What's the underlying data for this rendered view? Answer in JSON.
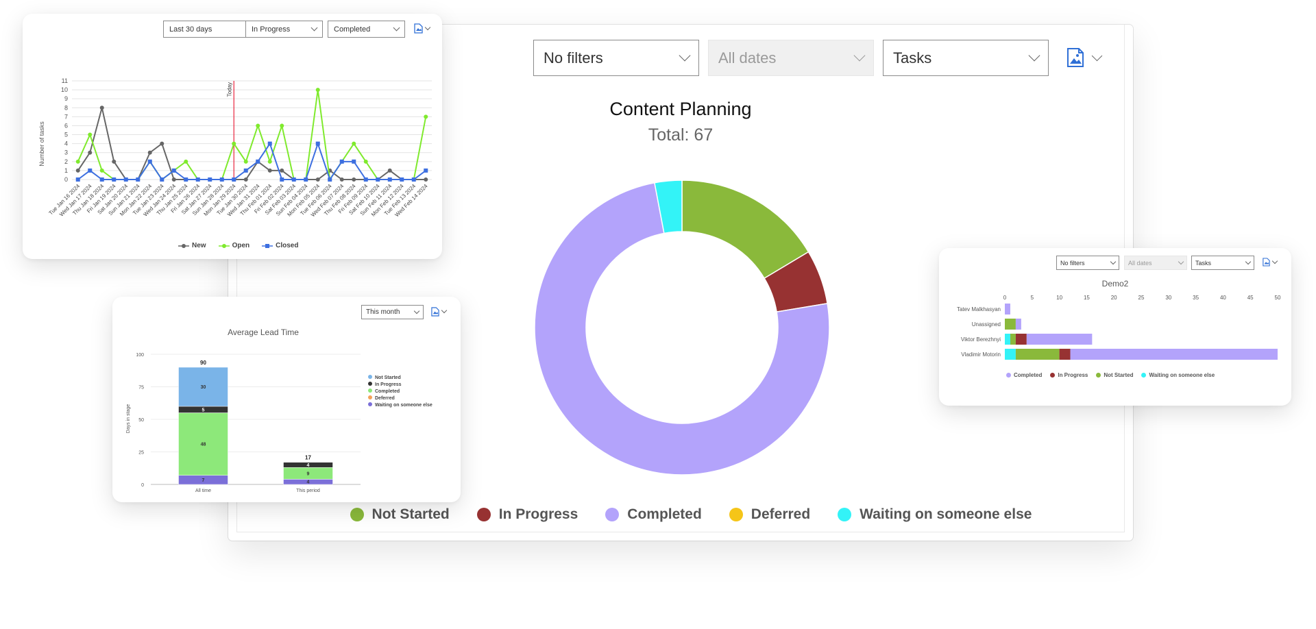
{
  "main": {
    "filters": {
      "f1": "No filters",
      "f2": "All dates",
      "f3": "Tasks"
    },
    "export_icon": "image-export-icon",
    "title": "Content Planning",
    "total": "Total: 67",
    "legend": [
      "Not Started",
      "In Progress",
      "Completed",
      "Deferred",
      "Waiting on someone else"
    ]
  },
  "tasks_card": {
    "filters": {
      "f1": "Last 30 days",
      "f2": "In Progress",
      "f3": "Completed"
    },
    "export_icon": "file-export-icon",
    "today_label": "Today",
    "legend": [
      "New",
      "Open",
      "Closed"
    ]
  },
  "lead_card": {
    "title": "Average Lead Time",
    "filter": "This month",
    "export_icon": "file-export-icon",
    "legend": [
      "Not Started",
      "In Progress",
      "Completed",
      "Deferred",
      "Waiting on someone else"
    ]
  },
  "demo_card": {
    "filters": {
      "f1": "No filters",
      "f2": "All dates",
      "f3": "Tasks"
    },
    "export_icon": "file-export-icon",
    "title": "Demo2",
    "legend": [
      "Completed",
      "In Progress",
      "Not Started",
      "Waiting on someone else"
    ]
  },
  "colors": {
    "not_started": "#8ab93b",
    "in_progress": "#973232",
    "completed": "#b3a3fb",
    "deferred": "#f5c518",
    "waiting": "#33f3f7",
    "new": "#666666",
    "open": "#7fea2d",
    "closed": "#3d6fe0",
    "today_line": "#e8263e"
  },
  "chart_data": [
    {
      "type": "pie",
      "title": "Content Planning",
      "subtitle": "Total: 67",
      "donut": true,
      "slices": [
        {
          "name": "Not Started",
          "value": 11,
          "color": "#8ab93b"
        },
        {
          "name": "In Progress",
          "value": 4,
          "color": "#973232"
        },
        {
          "name": "Completed",
          "value": 50,
          "color": "#b3a3fb"
        },
        {
          "name": "Deferred",
          "value": 0,
          "color": "#f5c518"
        },
        {
          "name": "Waiting on someone else",
          "value": 2,
          "color": "#33f3f7"
        }
      ],
      "legend": "bottom"
    },
    {
      "type": "line",
      "ylabel": "Number of tasks",
      "ylim": [
        0,
        11
      ],
      "yticks": [
        0,
        1,
        2,
        3,
        4,
        5,
        6,
        7,
        8,
        9,
        10,
        11
      ],
      "grid": true,
      "today_index": 13,
      "categories": [
        "Tue Jan 16 2024",
        "Wed Jan 17 2024",
        "Thu Jan 18 2024",
        "Fri Jan 19 2024",
        "Sat Jan 20 2024",
        "Sun Jan 21 2024",
        "Mon Jan 22 2024",
        "Tue Jan 23 2024",
        "Wed Jan 24 2024",
        "Thu Jan 25 2024",
        "Fri Jan 26 2024",
        "Sat Jan 27 2024",
        "Sun Jan 28 2024",
        "Mon Jan 29 2024",
        "Tue Jan 30 2024",
        "Wed Jan 31 2024",
        "Thu Feb 01 2024",
        "Fri Feb 02 2024",
        "Sat Feb 03 2024",
        "Sun Feb 04 2024",
        "Mon Feb 05 2024",
        "Tue Feb 06 2024",
        "Wed Feb 07 2024",
        "Thu Feb 08 2024",
        "Fri Feb 09 2024",
        "Sat Feb 10 2024",
        "Sun Feb 11 2024",
        "Mon Feb 12 2024",
        "Tue Feb 13 2024",
        "Wed Feb 14 2024"
      ],
      "series": [
        {
          "name": "New",
          "color": "#666666",
          "marker": "circle",
          "values": [
            1,
            3,
            8,
            2,
            0,
            0,
            3,
            4,
            0,
            0,
            0,
            0,
            0,
            0,
            0,
            2,
            1,
            1,
            0,
            0,
            0,
            1,
            0,
            0,
            0,
            0,
            1,
            0,
            0,
            0
          ]
        },
        {
          "name": "Open",
          "color": "#7fea2d",
          "marker": "circle",
          "values": [
            2,
            5,
            1,
            0,
            0,
            0,
            2,
            0,
            1,
            2,
            0,
            0,
            0,
            4,
            2,
            6,
            2,
            6,
            0,
            0,
            10,
            0,
            2,
            4,
            2,
            0,
            0,
            0,
            0,
            7
          ]
        },
        {
          "name": "Closed",
          "color": "#3d6fe0",
          "marker": "square",
          "values": [
            0,
            1,
            0,
            0,
            0,
            0,
            2,
            0,
            1,
            0,
            0,
            0,
            0,
            0,
            1,
            2,
            4,
            0,
            0,
            0,
            4,
            0,
            2,
            2,
            0,
            0,
            0,
            0,
            0,
            1
          ]
        }
      ],
      "legend": "bottom"
    },
    {
      "type": "bar",
      "stacked": true,
      "title": "Average Lead Time",
      "ylabel": "Days in stage",
      "ylim": [
        0,
        100
      ],
      "yticks": [
        0,
        25,
        50,
        75,
        100
      ],
      "categories": [
        "All time",
        "This period"
      ],
      "totals": [
        90,
        17
      ],
      "series": [
        {
          "name": "Waiting on someone else",
          "color": "#7b6fd8",
          "values": [
            7,
            4
          ]
        },
        {
          "name": "Completed",
          "color": "#8de87a",
          "values": [
            48,
            9
          ]
        },
        {
          "name": "In Progress",
          "color": "#333333",
          "values": [
            5,
            4
          ]
        },
        {
          "name": "Not Started",
          "color": "#7ab4e8",
          "values": [
            30,
            0
          ]
        }
      ],
      "legend_colors": [
        "#7ab4e8",
        "#333333",
        "#8de87a",
        "#f4a259",
        "#7b6fd8"
      ],
      "legend": "right"
    },
    {
      "type": "bar",
      "orientation": "horizontal",
      "stacked": true,
      "title": "Demo2",
      "xlim": [
        0,
        50
      ],
      "xticks": [
        0,
        5,
        10,
        15,
        20,
        25,
        30,
        35,
        40,
        45,
        50
      ],
      "categories": [
        "Tatev Malkhasyan",
        "Unassigned",
        "Viktor Berezhnyi",
        "Vladimir Motorin"
      ],
      "series": [
        {
          "name": "Waiting on someone else",
          "color": "#33f3f7",
          "values": [
            0,
            0,
            1,
            2
          ]
        },
        {
          "name": "Not Started",
          "color": "#8ab93b",
          "values": [
            0,
            2,
            1,
            8
          ]
        },
        {
          "name": "In Progress",
          "color": "#973232",
          "values": [
            0,
            0,
            2,
            2
          ]
        },
        {
          "name": "Completed",
          "color": "#b3a3fb",
          "values": [
            1,
            1,
            12,
            38
          ]
        }
      ],
      "legend": "bottom"
    }
  ]
}
